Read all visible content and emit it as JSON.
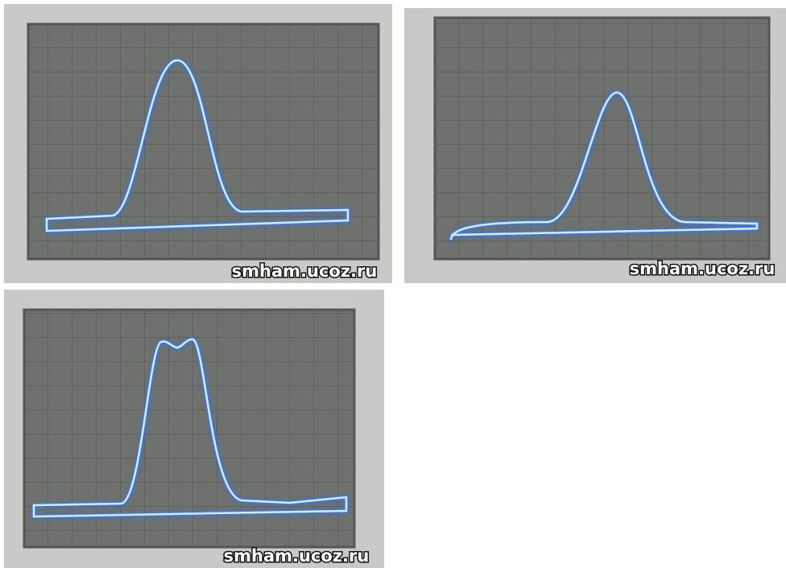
{
  "panels": [
    {
      "watermark": "smham.ucoz.ru"
    },
    {
      "watermark": "smham.ucoz.ru"
    },
    {
      "watermark": "smham.ucoz.ru"
    }
  ]
}
